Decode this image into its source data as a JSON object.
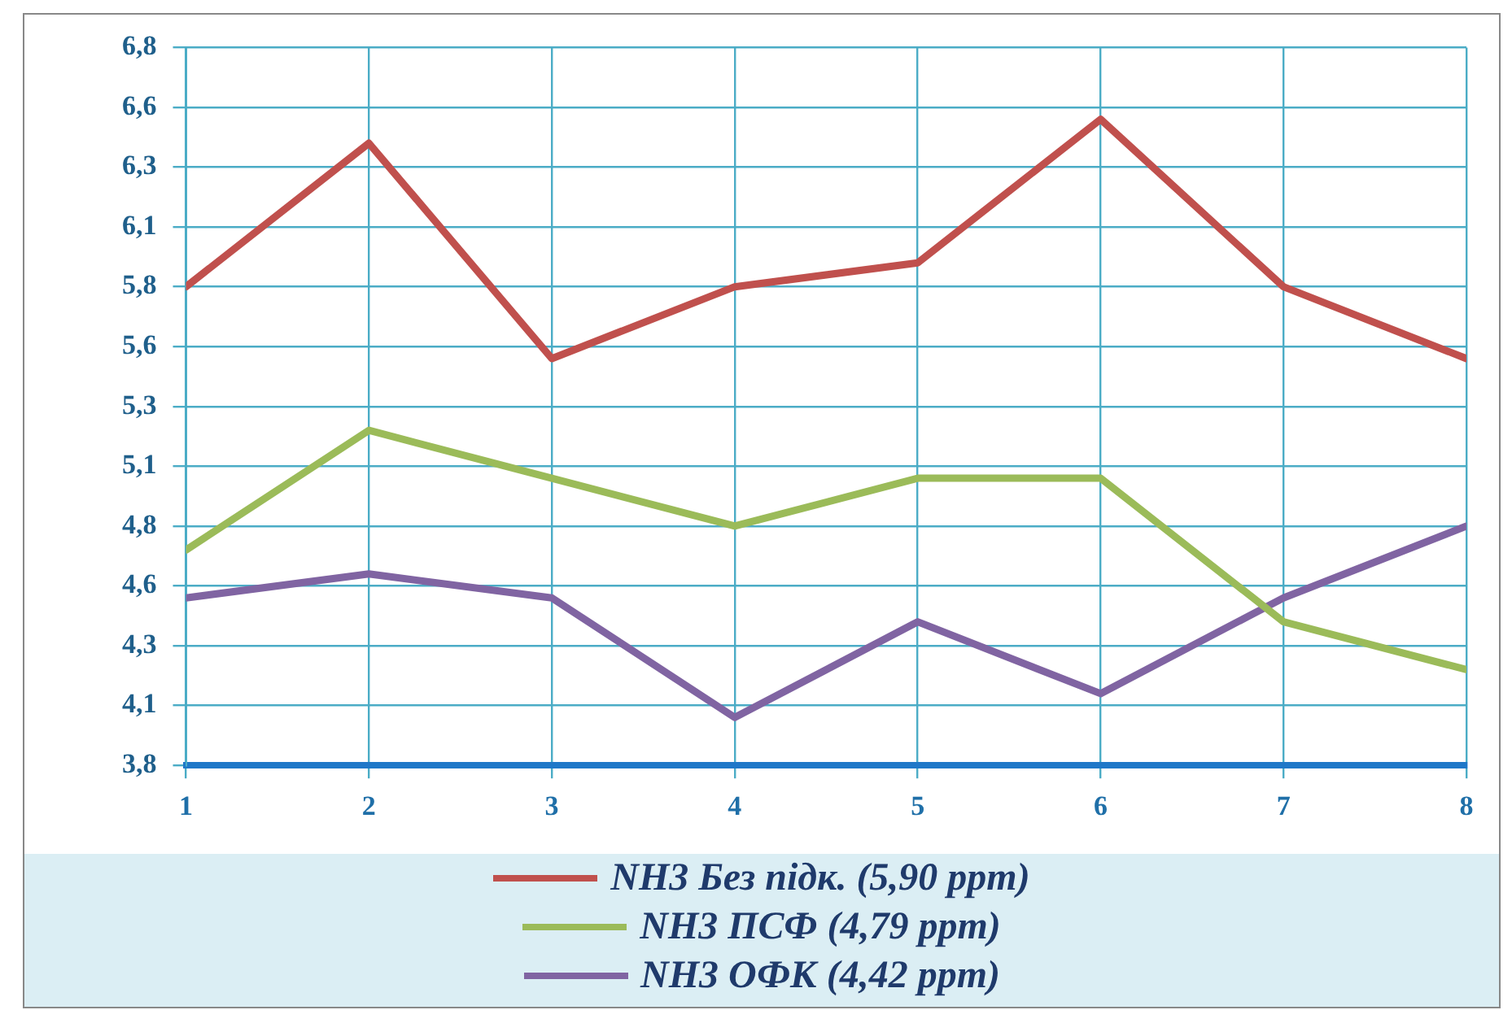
{
  "chart_data": {
    "type": "line",
    "x": [
      1,
      2,
      3,
      4,
      5,
      6,
      7,
      8
    ],
    "xlim": [
      1,
      8
    ],
    "xticks": [
      1,
      2,
      3,
      4,
      5,
      6,
      7,
      8
    ],
    "ylim": [
      3.8,
      6.8
    ],
    "yticks": [
      {
        "value": 3.8,
        "label": "3,8"
      },
      {
        "value": 4.05,
        "label": "4,1"
      },
      {
        "value": 4.3,
        "label": "4,3"
      },
      {
        "value": 4.55,
        "label": "4,6"
      },
      {
        "value": 4.8,
        "label": "4,8"
      },
      {
        "value": 5.05,
        "label": "5,1"
      },
      {
        "value": 5.3,
        "label": "5,3"
      },
      {
        "value": 5.55,
        "label": "5,6"
      },
      {
        "value": 5.8,
        "label": "5,8"
      },
      {
        "value": 6.05,
        "label": "6,1"
      },
      {
        "value": 6.3,
        "label": "6,3"
      },
      {
        "value": 6.55,
        "label": "6,6"
      },
      {
        "value": 6.8,
        "label": "6,8"
      }
    ],
    "series": [
      {
        "name": "NH3 Без підк. (5,90 ppm)",
        "color": "#c0504d",
        "values": [
          5.8,
          6.4,
          5.5,
          5.8,
          5.9,
          6.5,
          5.8,
          5.5
        ]
      },
      {
        "name": "NH3  ПСФ (4,79 ppm)",
        "color": "#9bbb59",
        "values": [
          4.7,
          5.2,
          5.0,
          4.8,
          5.0,
          5.0,
          4.4,
          4.2
        ]
      },
      {
        "name": "NH3  ОФК  (4,42 ppm)",
        "color": "#8064a2",
        "values": [
          4.5,
          4.6,
          4.5,
          4.0,
          4.4,
          4.1,
          4.5,
          4.8
        ]
      }
    ],
    "grid": true,
    "legend": "bottom",
    "marker": "none",
    "line_style": "solid"
  }
}
